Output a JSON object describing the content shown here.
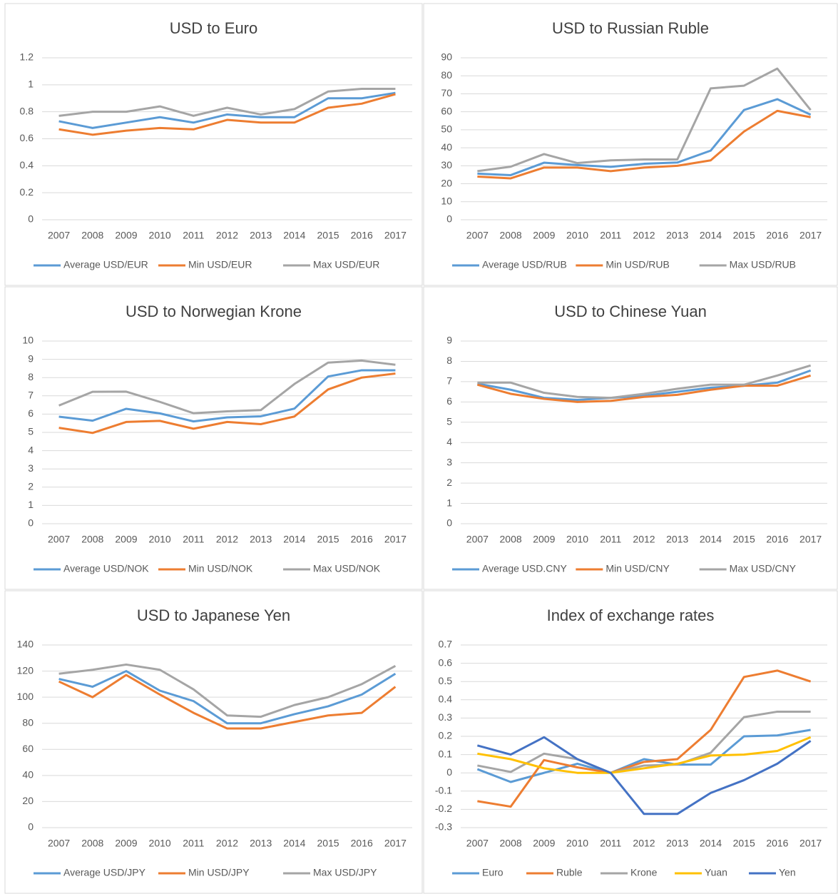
{
  "chart_data": [
    {
      "type": "line",
      "title": "USD to Euro",
      "categories": [
        "2007",
        "2008",
        "2009",
        "2010",
        "2011",
        "2012",
        "2013",
        "2014",
        "2015",
        "2016",
        "2017"
      ],
      "ylim": [
        0,
        1.2
      ],
      "yticks": [
        0,
        0.2,
        0.4,
        0.6,
        0.8,
        1,
        1.2
      ],
      "grid": true,
      "series": [
        {
          "name": "Average USD/EUR",
          "color": "#5b9bd5",
          "values": [
            0.73,
            0.68,
            0.72,
            0.76,
            0.72,
            0.78,
            0.76,
            0.76,
            0.9,
            0.9,
            0.94
          ]
        },
        {
          "name": "Min USD/EUR",
          "color": "#ed7d31",
          "values": [
            0.67,
            0.63,
            0.66,
            0.68,
            0.67,
            0.74,
            0.72,
            0.72,
            0.83,
            0.86,
            0.93
          ]
        },
        {
          "name": "Max USD/EUR",
          "color": "#a5a5a5",
          "values": [
            0.77,
            0.8,
            0.8,
            0.84,
            0.77,
            0.83,
            0.78,
            0.82,
            0.95,
            0.97,
            0.97
          ]
        }
      ]
    },
    {
      "type": "line",
      "title": "USD to Russian Ruble",
      "categories": [
        "2007",
        "2008",
        "2009",
        "2010",
        "2011",
        "2012",
        "2013",
        "2014",
        "2015",
        "2016",
        "2017"
      ],
      "ylim": [
        0,
        90
      ],
      "yticks": [
        0,
        10,
        20,
        30,
        40,
        50,
        60,
        70,
        80,
        90
      ],
      "grid": true,
      "series": [
        {
          "name": "Average USD/RUB",
          "color": "#5b9bd5",
          "values": [
            25.6,
            24.8,
            31.7,
            30.4,
            29.4,
            31.1,
            31.8,
            38.4,
            61.0,
            67.0,
            58.4
          ]
        },
        {
          "name": "Min USD/RUB",
          "color": "#ed7d31",
          "values": [
            24,
            23,
            29,
            29,
            27,
            29,
            30,
            33,
            49,
            60.5,
            57
          ]
        },
        {
          "name": "Max USD/RUB",
          "color": "#a5a5a5",
          "values": [
            27,
            29.5,
            36.5,
            31.5,
            33,
            33.5,
            33.5,
            73,
            74.5,
            84,
            61
          ]
        }
      ]
    },
    {
      "type": "line",
      "title": "USD to Norwegian Krone",
      "categories": [
        "2007",
        "2008",
        "2009",
        "2010",
        "2011",
        "2012",
        "2013",
        "2014",
        "2015",
        "2016",
        "2017"
      ],
      "ylim": [
        0,
        10
      ],
      "yticks": [
        0,
        1,
        2,
        3,
        4,
        5,
        6,
        7,
        8,
        9,
        10
      ],
      "grid": true,
      "series": [
        {
          "name": "Average USD/NOK",
          "color": "#5b9bd5",
          "values": [
            5.86,
            5.64,
            6.29,
            6.04,
            5.6,
            5.82,
            5.88,
            6.3,
            8.06,
            8.4,
            8.4
          ]
        },
        {
          "name": "Min USD/NOK",
          "color": "#ed7d31",
          "values": [
            5.25,
            4.97,
            5.57,
            5.63,
            5.2,
            5.57,
            5.45,
            5.87,
            7.35,
            8.0,
            8.22
          ]
        },
        {
          "name": "Max USD/NOK",
          "color": "#a5a5a5",
          "values": [
            6.47,
            7.22,
            7.23,
            6.67,
            6.05,
            6.15,
            6.22,
            7.65,
            8.82,
            8.93,
            8.7
          ]
        }
      ]
    },
    {
      "type": "line",
      "title": "USD to Chinese Yuan",
      "categories": [
        "2007",
        "2008",
        "2009",
        "2010",
        "2011",
        "2012",
        "2013",
        "2014",
        "2015",
        "2016",
        "2017"
      ],
      "ylim": [
        0,
        9
      ],
      "yticks": [
        0,
        1,
        2,
        3,
        4,
        5,
        6,
        7,
        8,
        9
      ],
      "grid": true,
      "series": [
        {
          "name": "Average USD.CNY",
          "color": "#5b9bd5",
          "values": [
            6.9,
            6.6,
            6.2,
            6.1,
            6.2,
            6.3,
            6.5,
            6.7,
            6.8,
            6.95,
            7.55
          ]
        },
        {
          "name": "Min USD/CNY",
          "color": "#ed7d31",
          "values": [
            6.85,
            6.4,
            6.15,
            6.0,
            6.05,
            6.25,
            6.35,
            6.6,
            6.8,
            6.8,
            7.3
          ]
        },
        {
          "name": "Max USD/CNY",
          "color": "#a5a5a5",
          "values": [
            6.95,
            6.95,
            6.45,
            6.25,
            6.2,
            6.4,
            6.65,
            6.85,
            6.85,
            7.3,
            7.8
          ]
        }
      ]
    },
    {
      "type": "line",
      "title": "USD to Japanese Yen",
      "categories": [
        "2007",
        "2008",
        "2009",
        "2010",
        "2011",
        "2012",
        "2013",
        "2014",
        "2015",
        "2016",
        "2017"
      ],
      "ylim": [
        0,
        140
      ],
      "yticks": [
        0,
        20,
        40,
        60,
        80,
        100,
        120,
        140
      ],
      "grid": true,
      "series": [
        {
          "name": "Average USD/JPY",
          "color": "#5b9bd5",
          "values": [
            114,
            108,
            120,
            105,
            97,
            80,
            80,
            87,
            93,
            102,
            118
          ]
        },
        {
          "name": "Min USD/JPY",
          "color": "#ed7d31",
          "values": [
            112,
            100,
            117,
            102,
            88,
            76,
            76,
            81,
            86,
            88,
            108
          ]
        },
        {
          "name": "Max USD/JPY",
          "color": "#a5a5a5",
          "values": [
            118,
            121,
            125,
            121,
            106,
            86,
            85,
            94,
            100,
            110,
            124
          ]
        }
      ]
    },
    {
      "type": "line",
      "title": "Index of exchange rates",
      "categories": [
        "2007",
        "2008",
        "2009",
        "2010",
        "2011",
        "2012",
        "2013",
        "2014",
        "2015",
        "2016",
        "2017"
      ],
      "ylim": [
        -0.3,
        0.7
      ],
      "yticks": [
        -0.3,
        -0.2,
        -0.1,
        0,
        0.1,
        0.2,
        0.3,
        0.4,
        0.5,
        0.6,
        0.7
      ],
      "grid": true,
      "series": [
        {
          "name": "Euro",
          "color": "#5b9bd5",
          "values": [
            0.02,
            -0.05,
            0,
            0.05,
            0,
            0.075,
            0.045,
            0.045,
            0.2,
            0.205,
            0.235
          ]
        },
        {
          "name": "Ruble",
          "color": "#ed7d31",
          "values": [
            -0.155,
            -0.185,
            0.07,
            0.03,
            0,
            0.06,
            0.075,
            0.235,
            0.525,
            0.56,
            0.5
          ]
        },
        {
          "name": "Krone",
          "color": "#a5a5a5",
          "values": [
            0.04,
            0.005,
            0.105,
            0.075,
            0,
            0.04,
            0.045,
            0.11,
            0.305,
            0.335,
            0.335
          ]
        },
        {
          "name": "Yuan",
          "color": "#ffc000",
          "values": [
            0.105,
            0.075,
            0.025,
            0,
            0,
            0.025,
            0.05,
            0.095,
            0.1,
            0.12,
            0.195
          ]
        },
        {
          "name": "Yen",
          "color": "#4472c4",
          "values": [
            0.15,
            0.1,
            0.195,
            0.075,
            0,
            -0.225,
            -0.225,
            -0.11,
            -0.04,
            0.05,
            0.175
          ]
        }
      ]
    }
  ]
}
